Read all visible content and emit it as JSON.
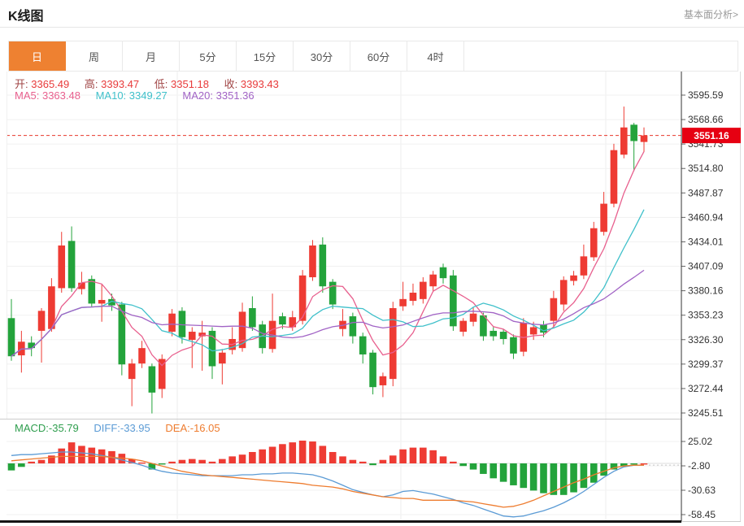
{
  "header": {
    "title": "K线图",
    "link": "基本面分析>"
  },
  "tabs": {
    "items": [
      "日",
      "周",
      "月",
      "5分",
      "15分",
      "30分",
      "60分",
      "4时"
    ],
    "active_index": 0,
    "active_color": "#ee8131"
  },
  "info": {
    "ohlc": [
      {
        "label": "开:",
        "value": "3365.49"
      },
      {
        "label": "高:",
        "value": "3393.47"
      },
      {
        "label": "低:",
        "value": "3351.18"
      },
      {
        "label": "收:",
        "value": "3393.43"
      }
    ],
    "ma": [
      {
        "label": "MA5:",
        "value": "3363.48"
      },
      {
        "label": "MA10:",
        "value": "3349.27"
      },
      {
        "label": "MA20:",
        "value": "3351.36"
      }
    ],
    "macd": [
      {
        "label": "MACD:",
        "value": "-35.79"
      },
      {
        "label": "DIFF:",
        "value": "-33.95"
      },
      {
        "label": "DEA:",
        "value": "-16.05"
      }
    ]
  },
  "chart_data": {
    "type": "candlestick",
    "title": "K线图 daily candlestick with MA5/MA10/MA20 overlays and MACD sub-panel",
    "last_price": "3551.16",
    "colors": {
      "up": "#ee3b33",
      "down": "#23a33b",
      "ma5": "#e8608e",
      "ma10": "#3fc0ca",
      "ma20": "#a163c5",
      "diff": "#5b9bd5",
      "dea": "#ee7c2f",
      "last_price_bg": "#e60012",
      "last_price_line": "#e8372c"
    },
    "panels": {
      "main": {
        "price_ticks": [
          "3595.59",
          "3568.66",
          "3541.73",
          "3514.80",
          "3487.87",
          "3460.94",
          "3434.01",
          "3407.09",
          "3380.16",
          "3353.23",
          "3326.30",
          "3299.37",
          "3272.44",
          "3245.51"
        ],
        "candles_format": [
          "open",
          "close",
          "high",
          "low"
        ],
        "candles": [
          [
            3350,
            3308,
            3371,
            3303
          ],
          [
            3309,
            3324,
            3336,
            3290
          ],
          [
            3323,
            3317,
            3330,
            3308
          ],
          [
            3336,
            3358,
            3361,
            3301
          ],
          [
            3338,
            3385,
            3394,
            3335
          ],
          [
            3383,
            3430,
            3445,
            3378
          ],
          [
            3435,
            3383,
            3451,
            3379
          ],
          [
            3382,
            3389,
            3401,
            3376
          ],
          [
            3393,
            3366,
            3397,
            3362
          ],
          [
            3366,
            3370,
            3387,
            3346
          ],
          [
            3371,
            3364,
            3377,
            3358
          ],
          [
            3365,
            3299,
            3368,
            3287
          ],
          [
            3283,
            3300,
            3305,
            3253
          ],
          [
            3300,
            3317,
            3325,
            3295
          ],
          [
            3297,
            3268,
            3300,
            3245
          ],
          [
            3272,
            3305,
            3310,
            3262
          ],
          [
            3335,
            3355,
            3360,
            3330
          ],
          [
            3358,
            3329,
            3362,
            3322
          ],
          [
            3326,
            3335,
            3340,
            3295
          ],
          [
            3330,
            3334,
            3347,
            3292
          ],
          [
            3336,
            3297,
            3340,
            3283
          ],
          [
            3300,
            3312,
            3316,
            3277
          ],
          [
            3315,
            3327,
            3340,
            3310
          ],
          [
            3317,
            3357,
            3367,
            3313
          ],
          [
            3361,
            3340,
            3374,
            3336
          ],
          [
            3343,
            3317,
            3347,
            3311
          ],
          [
            3316,
            3347,
            3377,
            3312
          ],
          [
            3352,
            3343,
            3356,
            3338
          ],
          [
            3340,
            3351,
            3358,
            3336
          ],
          [
            3347,
            3397,
            3403,
            3343
          ],
          [
            3395,
            3430,
            3436,
            3391
          ],
          [
            3431,
            3385,
            3439,
            3378
          ],
          [
            3390,
            3365,
            3393,
            3360
          ],
          [
            3338,
            3347,
            3360,
            3330
          ],
          [
            3352,
            3330,
            3356,
            3322
          ],
          [
            3330,
            3310,
            3334,
            3300
          ],
          [
            3312,
            3274,
            3315,
            3266
          ],
          [
            3276,
            3286,
            3290,
            3263
          ],
          [
            3283,
            3361,
            3368,
            3275
          ],
          [
            3363,
            3371,
            3390,
            3358
          ],
          [
            3369,
            3378,
            3388,
            3364
          ],
          [
            3371,
            3390,
            3395,
            3366
          ],
          [
            3385,
            3398,
            3402,
            3380
          ],
          [
            3406,
            3394,
            3410,
            3388
          ],
          [
            3397,
            3341,
            3403,
            3336
          ],
          [
            3335,
            3347,
            3350,
            3330
          ],
          [
            3346,
            3355,
            3362,
            3341
          ],
          [
            3353,
            3330,
            3356,
            3325
          ],
          [
            3336,
            3330,
            3340,
            3325
          ],
          [
            3335,
            3327,
            3338,
            3321
          ],
          [
            3329,
            3311,
            3332,
            3305
          ],
          [
            3313,
            3345,
            3350,
            3308
          ],
          [
            3332,
            3340,
            3346,
            3326
          ],
          [
            3343,
            3334,
            3347,
            3329
          ],
          [
            3347,
            3372,
            3380,
            3340
          ],
          [
            3365,
            3392,
            3396,
            3358
          ],
          [
            3391,
            3397,
            3402,
            3386
          ],
          [
            3397,
            3418,
            3431,
            3393
          ],
          [
            3417,
            3449,
            3456,
            3413
          ],
          [
            3445,
            3476,
            3489,
            3441
          ],
          [
            3476,
            3535,
            3542,
            3472
          ],
          [
            3530,
            3560,
            3583,
            3526
          ],
          [
            3563,
            3545,
            3565,
            3512
          ],
          [
            3544,
            3551.16,
            3560,
            3533
          ]
        ]
      },
      "macd": {
        "ticks": [
          "25.02",
          "-2.80",
          "-30.63",
          "-58.45"
        ],
        "hist": [
          -8,
          -4,
          2,
          4,
          9,
          17,
          24,
          20,
          18,
          16,
          14,
          11,
          5,
          1,
          -7,
          -1,
          2,
          4,
          5,
          4,
          2,
          5,
          8,
          10,
          13,
          16,
          19,
          22,
          24,
          26,
          25,
          20,
          13,
          8,
          4,
          2,
          -2,
          4,
          9,
          16,
          18,
          18,
          15,
          8,
          2,
          -3,
          -7,
          -12,
          -17,
          -21,
          -25,
          -28,
          -31,
          -34,
          -36,
          -36,
          -33,
          -28,
          -22,
          -14,
          -7,
          -3,
          -1,
          0
        ],
        "diff": [
          9,
          10,
          10,
          11,
          12,
          13,
          13,
          12,
          11,
          9,
          7,
          4,
          1,
          -2,
          -6,
          -9,
          -11,
          -12,
          -13,
          -14,
          -14,
          -14,
          -14,
          -13,
          -13,
          -12,
          -12,
          -11,
          -11,
          -12,
          -13,
          -16,
          -20,
          -25,
          -30,
          -33,
          -36,
          -38,
          -36,
          -32,
          -31,
          -33,
          -35,
          -38,
          -41,
          -45,
          -48,
          -52,
          -56,
          -60,
          -61,
          -60,
          -57,
          -54,
          -50,
          -45,
          -39,
          -32,
          -24,
          -16,
          -9,
          -4,
          -2,
          -2
        ],
        "dea": [
          3,
          4,
          5,
          6,
          7,
          8,
          8,
          8,
          8,
          8,
          7,
          6,
          5,
          3,
          0,
          -3,
          -6,
          -9,
          -11,
          -13,
          -14,
          -15,
          -16,
          -17,
          -18,
          -19,
          -20,
          -21,
          -22,
          -23,
          -25,
          -26,
          -27,
          -29,
          -32,
          -34,
          -36,
          -38,
          -39,
          -40,
          -40,
          -42,
          -42,
          -42,
          -42,
          -43,
          -44,
          -46,
          -48,
          -50,
          -49,
          -46,
          -42,
          -37,
          -32,
          -27,
          -22,
          -18,
          -13,
          -9,
          -5,
          -3,
          -2,
          -2
        ]
      }
    }
  }
}
